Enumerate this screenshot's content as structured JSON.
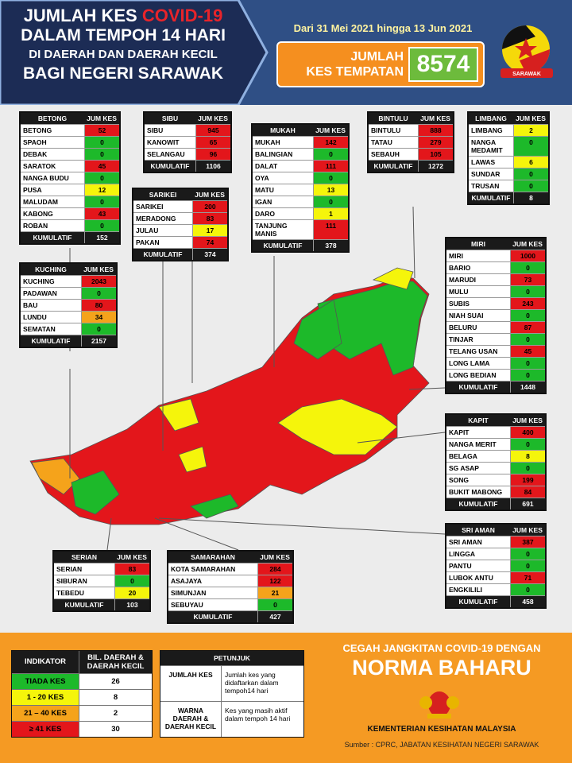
{
  "header": {
    "title_1": "JUMLAH KES",
    "title_covid": "COVID-19",
    "title_2": "DALAM TEMPOH 14 HARI",
    "title_3": "DI DAERAH DAN DAERAH KECIL",
    "title_4": "BAGI NEGERI SARAWAK",
    "date_range": "Dari 31 Mei 2021 hingga 13 Jun 2021",
    "total_label_1": "JUMLAH",
    "total_label_2": "KES TEMPATAN",
    "total": 8574,
    "logo_text": "SARAWAK"
  },
  "divisions": [
    {
      "name": "BETONG",
      "header": "JUM KES",
      "rows": [
        {
          "name": "BETONG",
          "cases": 52,
          "color": "#e3161b"
        },
        {
          "name": "SPAOH",
          "cases": 0,
          "color": "#1db92a"
        },
        {
          "name": "DEBAK",
          "cases": 0,
          "color": "#1db92a"
        },
        {
          "name": "SARATOK",
          "cases": 45,
          "color": "#e3161b"
        },
        {
          "name": "NANGA BUDU",
          "cases": 0,
          "color": "#1db92a"
        },
        {
          "name": "PUSA",
          "cases": 12,
          "color": "#f5f50b"
        },
        {
          "name": "MALUDAM",
          "cases": 0,
          "color": "#1db92a"
        },
        {
          "name": "KABONG",
          "cases": 43,
          "color": "#e3161b"
        },
        {
          "name": "ROBAN",
          "cases": 0,
          "color": "#1db92a"
        }
      ],
      "total_label": "KUMULATIF",
      "total": 152
    },
    {
      "name": "SIBU",
      "header": "JUM KES",
      "rows": [
        {
          "name": "SIBU",
          "cases": 945,
          "color": "#e3161b"
        },
        {
          "name": "KANOWIT",
          "cases": 65,
          "color": "#e3161b"
        },
        {
          "name": "SELANGAU",
          "cases": 96,
          "color": "#e3161b"
        }
      ],
      "total_label": "KUMULATIF",
      "total": 1106
    },
    {
      "name": "SARIKEI",
      "header": "JUM KES",
      "rows": [
        {
          "name": "SARIKEI",
          "cases": 200,
          "color": "#e3161b"
        },
        {
          "name": "MERADONG",
          "cases": 83,
          "color": "#e3161b"
        },
        {
          "name": "JULAU",
          "cases": 17,
          "color": "#f5f50b"
        },
        {
          "name": "PAKAN",
          "cases": 74,
          "color": "#e3161b"
        }
      ],
      "total_label": "KUMULATIF",
      "total": 374
    },
    {
      "name": "MUKAH",
      "header": "JUM KES",
      "rows": [
        {
          "name": "MUKAH",
          "cases": 142,
          "color": "#e3161b"
        },
        {
          "name": "BALINGIAN",
          "cases": 0,
          "color": "#1db92a"
        },
        {
          "name": "DALAT",
          "cases": 111,
          "color": "#e3161b"
        },
        {
          "name": "OYA",
          "cases": 0,
          "color": "#1db92a"
        },
        {
          "name": "MATU",
          "cases": 13,
          "color": "#f5f50b"
        },
        {
          "name": "IGAN",
          "cases": 0,
          "color": "#1db92a"
        },
        {
          "name": "DARO",
          "cases": 1,
          "color": "#f5f50b"
        },
        {
          "name": "TANJUNG MANIS",
          "cases": 111,
          "color": "#e3161b"
        }
      ],
      "total_label": "KUMULATIF",
      "total": 378
    },
    {
      "name": "BINTULU",
      "header": "JUM KES",
      "rows": [
        {
          "name": "BINTULU",
          "cases": 888,
          "color": "#e3161b"
        },
        {
          "name": "TATAU",
          "cases": 279,
          "color": "#e3161b"
        },
        {
          "name": "SEBAUH",
          "cases": 105,
          "color": "#e3161b"
        }
      ],
      "total_label": "KUMULATIF",
      "total": 1272
    },
    {
      "name": "LIMBANG",
      "header": "JUM KES",
      "rows": [
        {
          "name": "LIMBANG",
          "cases": 2,
          "color": "#f5f50b"
        },
        {
          "name": "NANGA MEDAMIT",
          "cases": 0,
          "color": "#1db92a"
        },
        {
          "name": "LAWAS",
          "cases": 6,
          "color": "#f5f50b"
        },
        {
          "name": "SUNDAR",
          "cases": 0,
          "color": "#1db92a"
        },
        {
          "name": "TRUSAN",
          "cases": 0,
          "color": "#1db92a"
        }
      ],
      "total_label": "KUMULATIF",
      "total": 8
    },
    {
      "name": "KUCHING",
      "header": "JUM KES",
      "rows": [
        {
          "name": "KUCHING",
          "cases": 2043,
          "color": "#e3161b"
        },
        {
          "name": "PADAWAN",
          "cases": 0,
          "color": "#1db92a"
        },
        {
          "name": "BAU",
          "cases": 80,
          "color": "#e3161b"
        },
        {
          "name": "LUNDU",
          "cases": 34,
          "color": "#f5a31b"
        },
        {
          "name": "SEMATAN",
          "cases": 0,
          "color": "#1db92a"
        }
      ],
      "total_label": "KUMULATIF",
      "total": 2157
    },
    {
      "name": "MIRI",
      "header": "JUM KES",
      "rows": [
        {
          "name": "MIRI",
          "cases": 1000,
          "color": "#e3161b"
        },
        {
          "name": "BARIO",
          "cases": 0,
          "color": "#1db92a"
        },
        {
          "name": "MARUDI",
          "cases": 73,
          "color": "#e3161b"
        },
        {
          "name": "MULU",
          "cases": 0,
          "color": "#1db92a"
        },
        {
          "name": "SUBIS",
          "cases": 243,
          "color": "#e3161b"
        },
        {
          "name": "NIAH SUAI",
          "cases": 0,
          "color": "#1db92a"
        },
        {
          "name": "BELURU",
          "cases": 87,
          "color": "#e3161b"
        },
        {
          "name": "TINJAR",
          "cases": 0,
          "color": "#1db92a"
        },
        {
          "name": "TELANG USAN",
          "cases": 45,
          "color": "#e3161b"
        },
        {
          "name": "LONG LAMA",
          "cases": 0,
          "color": "#1db92a"
        },
        {
          "name": "LONG BEDIAN",
          "cases": 0,
          "color": "#1db92a"
        }
      ],
      "total_label": "KUMULATIF",
      "total": 1448
    },
    {
      "name": "KAPIT",
      "header": "JUM KES",
      "rows": [
        {
          "name": "KAPIT",
          "cases": 400,
          "color": "#e3161b"
        },
        {
          "name": "NANGA MERIT",
          "cases": 0,
          "color": "#1db92a"
        },
        {
          "name": "BELAGA",
          "cases": 8,
          "color": "#f5f50b"
        },
        {
          "name": "SG ASAP",
          "cases": 0,
          "color": "#1db92a"
        },
        {
          "name": "SONG",
          "cases": 199,
          "color": "#e3161b"
        },
        {
          "name": "BUKIT MABONG",
          "cases": 84,
          "color": "#e3161b"
        }
      ],
      "total_label": "KUMULATIF",
      "total": 691
    },
    {
      "name": "SRI AMAN",
      "header": "JUM KES",
      "rows": [
        {
          "name": "SRI AMAN",
          "cases": 387,
          "color": "#e3161b"
        },
        {
          "name": "LINGGA",
          "cases": 0,
          "color": "#1db92a"
        },
        {
          "name": "PANTU",
          "cases": 0,
          "color": "#1db92a"
        },
        {
          "name": "LUBOK ANTU",
          "cases": 71,
          "color": "#e3161b"
        },
        {
          "name": "ENGKILILI",
          "cases": 0,
          "color": "#1db92a"
        }
      ],
      "total_label": "KUMULATIF",
      "total": 458
    },
    {
      "name": "SERIAN",
      "header": "JUM KES",
      "rows": [
        {
          "name": "SERIAN",
          "cases": 83,
          "color": "#e3161b"
        },
        {
          "name": "SIBURAN",
          "cases": 0,
          "color": "#1db92a"
        },
        {
          "name": "TEBEDU",
          "cases": 20,
          "color": "#f5f50b"
        }
      ],
      "total_label": "KUMULATIF",
      "total": 103
    },
    {
      "name": "SAMARAHAN",
      "header": "JUM KES",
      "rows": [
        {
          "name": "KOTA SAMARAHAN",
          "cases": 284,
          "color": "#e3161b"
        },
        {
          "name": "ASAJAYA",
          "cases": 122,
          "color": "#e3161b"
        },
        {
          "name": "SIMUNJAN",
          "cases": 21,
          "color": "#f5a31b"
        },
        {
          "name": "SEBUYAU",
          "cases": 0,
          "color": "#1db92a"
        }
      ],
      "total_label": "KUMULATIF",
      "total": 427
    }
  ],
  "indicator": {
    "header_1": "INDIKATOR",
    "header_2": "BIL. DAERAH & DAERAH KECIL",
    "items": [
      {
        "label": "TIADA KES",
        "count": 26,
        "color": "#1db92a"
      },
      {
        "label": "1 - 20 KES",
        "count": 8,
        "color": "#f5f50b"
      },
      {
        "label": "21 – 40 KES",
        "count": 2,
        "color": "#f5a31b"
      },
      {
        "label": "≥ 41 KES",
        "count": 30,
        "color": "#e3161b"
      }
    ]
  },
  "legend": {
    "header": "PETUNJUK",
    "rows": [
      {
        "term": "JUMLAH KES",
        "desc": "Jumlah kes yang didaftarkan dalam tempoh14 hari"
      },
      {
        "term": "WARNA DAERAH & DAERAH KECIL",
        "desc": "Kes yang masih aktif dalam tempoh 14 hari"
      }
    ]
  },
  "footer": {
    "slogan_1": "CEGAH JANGKITAN COVID-19 DENGAN",
    "slogan_2": "NORMA BAHARU",
    "ministry": "KEMENTERIAN KESIHATAN MALAYSIA",
    "source": "Sumber : CPRC, JABATAN KESIHATAN NEGERI SARAWAK"
  }
}
